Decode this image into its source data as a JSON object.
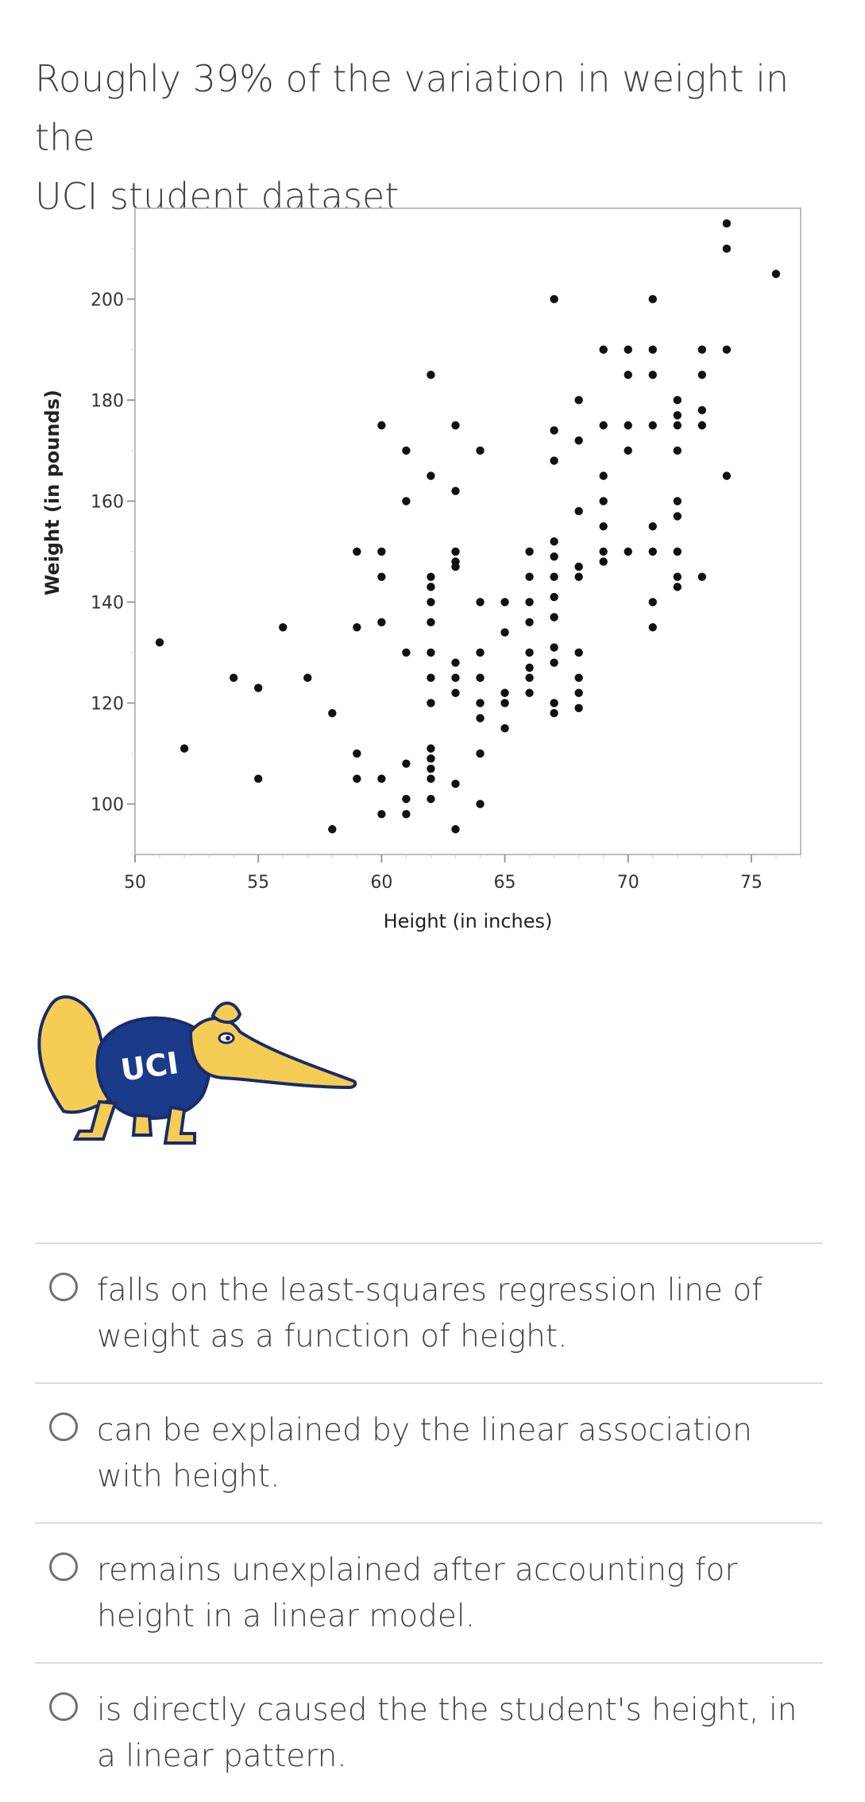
{
  "question": {
    "line1": "Roughly 39% of the variation in weight in  the",
    "line2": "UCI student dataset"
  },
  "chart_data": {
    "type": "scatter",
    "xlabel": "Height (in inches)",
    "ylabel": "Weight (in pounds)",
    "xlim": [
      50,
      77
    ],
    "ylim": [
      90,
      218
    ],
    "x_ticks": [
      50,
      55,
      60,
      65,
      70,
      75
    ],
    "y_ticks": [
      100,
      120,
      140,
      160,
      180,
      200
    ],
    "grid": false,
    "points": [
      [
        51,
        132
      ],
      [
        52,
        111
      ],
      [
        54,
        125
      ],
      [
        55,
        123
      ],
      [
        55,
        105
      ],
      [
        56,
        135
      ],
      [
        57,
        125
      ],
      [
        58,
        118
      ],
      [
        58,
        95
      ],
      [
        59,
        150
      ],
      [
        59,
        135
      ],
      [
        59,
        110
      ],
      [
        59,
        105
      ],
      [
        60,
        150
      ],
      [
        60,
        145
      ],
      [
        60,
        175
      ],
      [
        60,
        136
      ],
      [
        60,
        105
      ],
      [
        60,
        98
      ],
      [
        61,
        170
      ],
      [
        61,
        160
      ],
      [
        61,
        130
      ],
      [
        61,
        108
      ],
      [
        61,
        101
      ],
      [
        61,
        98
      ],
      [
        62,
        185
      ],
      [
        62,
        165
      ],
      [
        62,
        145
      ],
      [
        62,
        143
      ],
      [
        62,
        140
      ],
      [
        62,
        136
      ],
      [
        62,
        130
      ],
      [
        62,
        125
      ],
      [
        62,
        120
      ],
      [
        62,
        111
      ],
      [
        62,
        109
      ],
      [
        62,
        107
      ],
      [
        62,
        105
      ],
      [
        62,
        101
      ],
      [
        63,
        175
      ],
      [
        63,
        162
      ],
      [
        63,
        150
      ],
      [
        63,
        148
      ],
      [
        63,
        147
      ],
      [
        63,
        128
      ],
      [
        63,
        125
      ],
      [
        63,
        122
      ],
      [
        63,
        104
      ],
      [
        63,
        95
      ],
      [
        64,
        170
      ],
      [
        64,
        140
      ],
      [
        64,
        130
      ],
      [
        64,
        125
      ],
      [
        64,
        120
      ],
      [
        64,
        117
      ],
      [
        64,
        110
      ],
      [
        64,
        100
      ],
      [
        65,
        140
      ],
      [
        65,
        134
      ],
      [
        65,
        122
      ],
      [
        65,
        120
      ],
      [
        65,
        115
      ],
      [
        66,
        150
      ],
      [
        66,
        145
      ],
      [
        66,
        140
      ],
      [
        66,
        136
      ],
      [
        66,
        130
      ],
      [
        66,
        127
      ],
      [
        66,
        125
      ],
      [
        66,
        122
      ],
      [
        67,
        152
      ],
      [
        67,
        149
      ],
      [
        67,
        145
      ],
      [
        67,
        141
      ],
      [
        67,
        137
      ],
      [
        67,
        131
      ],
      [
        67,
        128
      ],
      [
        67,
        120
      ],
      [
        67,
        118
      ],
      [
        67,
        174
      ],
      [
        67,
        168
      ],
      [
        67,
        200
      ],
      [
        68,
        158
      ],
      [
        68,
        147
      ],
      [
        68,
        145
      ],
      [
        68,
        180
      ],
      [
        68,
        172
      ],
      [
        68,
        130
      ],
      [
        68,
        125
      ],
      [
        68,
        122
      ],
      [
        68,
        119
      ],
      [
        69,
        190
      ],
      [
        69,
        175
      ],
      [
        69,
        165
      ],
      [
        69,
        160
      ],
      [
        69,
        155
      ],
      [
        69,
        150
      ],
      [
        69,
        148
      ],
      [
        70,
        190
      ],
      [
        70,
        185
      ],
      [
        70,
        175
      ],
      [
        70,
        170
      ],
      [
        70,
        150
      ],
      [
        71,
        200
      ],
      [
        71,
        190
      ],
      [
        71,
        185
      ],
      [
        71,
        175
      ],
      [
        71,
        155
      ],
      [
        71,
        150
      ],
      [
        71,
        140
      ],
      [
        71,
        135
      ],
      [
        72,
        180
      ],
      [
        72,
        177
      ],
      [
        72,
        175
      ],
      [
        72,
        170
      ],
      [
        72,
        160
      ],
      [
        72,
        157
      ],
      [
        72,
        150
      ],
      [
        72,
        145
      ],
      [
        72,
        143
      ],
      [
        73,
        190
      ],
      [
        73,
        185
      ],
      [
        73,
        178
      ],
      [
        73,
        175
      ],
      [
        73,
        145
      ],
      [
        74,
        215
      ],
      [
        74,
        210
      ],
      [
        74,
        190
      ],
      [
        74,
        165
      ],
      [
        76,
        205
      ]
    ]
  },
  "logo": {
    "text": "UCI",
    "colors": {
      "navy": "#1a3b8a",
      "gold": "#f5cd55",
      "outline": "#1a2b6a"
    }
  },
  "options": [
    {
      "text": "falls on the least-squares regression line of weight as a function of height."
    },
    {
      "text": "can be explained by the linear association with height."
    },
    {
      "text": "remains unexplained after accounting for height in a linear model."
    },
    {
      "text": "is directly caused the the student's height, in a linear pattern."
    }
  ]
}
